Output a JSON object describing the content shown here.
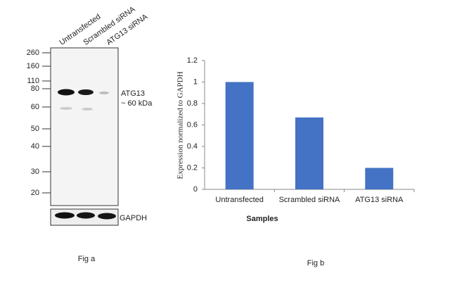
{
  "blot": {
    "lanes": [
      "Untransfected",
      "Scrambled siRNA",
      "ATG13 siRNA"
    ],
    "markers": [
      260,
      160,
      110,
      80,
      60,
      50,
      40,
      30,
      20
    ],
    "target_label": "ATG13",
    "target_size": "~ 60 kDa",
    "control_label": "GAPDH"
  },
  "captions": {
    "left": "Fig a",
    "right": "Fig b"
  },
  "chart_data": {
    "type": "bar",
    "x_label": "Samples",
    "y_label": "Expression  normalized to GAPDH",
    "categories": [
      "Untransfected",
      "Scrambled siRNA",
      "ATG13  siRNA"
    ],
    "values": [
      1.0,
      0.67,
      0.2
    ],
    "color": "#4472c4",
    "ylim": [
      0,
      1.2
    ],
    "yticks": [
      0,
      0.2,
      0.4,
      0.6,
      0.8,
      1,
      1.2
    ]
  }
}
